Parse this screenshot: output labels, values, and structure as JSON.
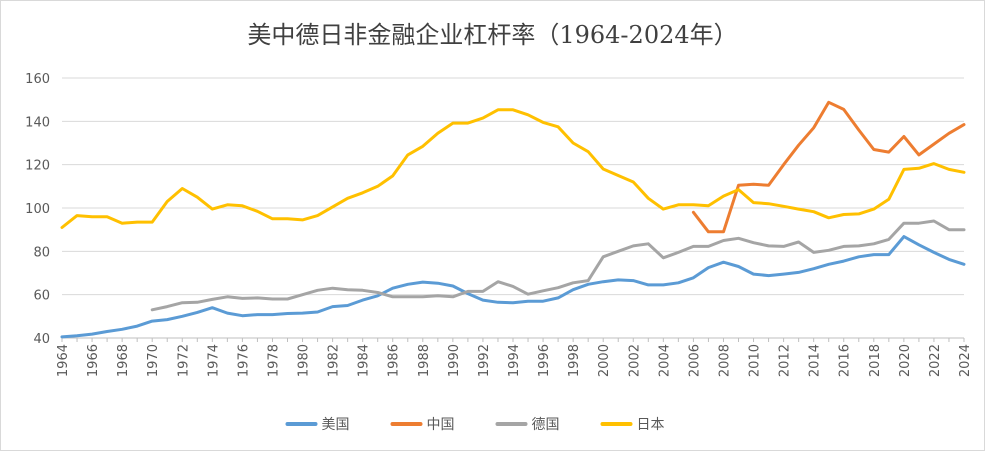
{
  "chart_data": {
    "type": "line",
    "title": "美中德日非金融企业杠杆率（1964-2024年）",
    "xlabel": "",
    "ylabel": "",
    "ylim": [
      40,
      160
    ],
    "y_ticks": [
      40,
      60,
      80,
      100,
      120,
      140,
      160
    ],
    "x_tick_labels": [
      "1964",
      "1966",
      "1968",
      "1970",
      "1972",
      "1974",
      "1976",
      "1978",
      "1980",
      "1982",
      "1984",
      "1986",
      "1988",
      "1990",
      "1992",
      "1994",
      "1996",
      "1998",
      "2000",
      "2002",
      "2004",
      "2006",
      "2008",
      "2010",
      "2012",
      "2014",
      "2016",
      "2018",
      "2020",
      "2022",
      "2024"
    ],
    "grid": true,
    "legend_position": "bottom",
    "x": [
      1964,
      1965,
      1966,
      1967,
      1968,
      1969,
      1970,
      1971,
      1972,
      1973,
      1974,
      1975,
      1976,
      1977,
      1978,
      1979,
      1980,
      1981,
      1982,
      1983,
      1984,
      1985,
      1986,
      1987,
      1988,
      1989,
      1990,
      1991,
      1992,
      1993,
      1994,
      1995,
      1996,
      1997,
      1998,
      1999,
      2000,
      2001,
      2002,
      2003,
      2004,
      2005,
      2006,
      2007,
      2008,
      2009,
      2010,
      2011,
      2012,
      2013,
      2014,
      2015,
      2016,
      2017,
      2018,
      2019,
      2020,
      2021,
      2022,
      2023,
      2024
    ],
    "series": [
      {
        "name": "美国",
        "color": "#5b9bd5",
        "values": [
          40.5,
          41,
          41.8,
          43,
          44,
          45.5,
          47.8,
          48.5,
          50,
          51.8,
          54,
          51.5,
          50.3,
          50.8,
          50.8,
          51.3,
          51.5,
          52,
          54.5,
          55,
          57.5,
          59.5,
          63,
          64.8,
          65.8,
          65.3,
          64,
          60.5,
          57.5,
          56.5,
          56.3,
          57,
          57,
          58.5,
          62.3,
          64.8,
          66,
          66.8,
          66.5,
          64.5,
          64.5,
          65.5,
          67.8,
          72.5,
          75,
          73,
          69.5,
          68.8,
          69.5,
          70.3,
          72,
          74,
          75.5,
          77.5,
          78.5,
          78.5,
          86.8,
          83,
          79.5,
          76.3,
          74
        ]
      },
      {
        "name": "中国",
        "color": "#ed7d31",
        "values": [
          null,
          null,
          null,
          null,
          null,
          null,
          null,
          null,
          null,
          null,
          null,
          null,
          null,
          null,
          null,
          null,
          null,
          null,
          null,
          null,
          null,
          null,
          null,
          null,
          null,
          null,
          null,
          null,
          null,
          null,
          null,
          null,
          null,
          null,
          null,
          null,
          null,
          null,
          null,
          null,
          null,
          null,
          98,
          89,
          89,
          110.5,
          111,
          110.5,
          120,
          129,
          137,
          148.8,
          145.5,
          136,
          127,
          125.8,
          133,
          124.5,
          129.5,
          134.5,
          138.5
        ]
      },
      {
        "name": "德国",
        "color": "#a5a5a5",
        "values": [
          null,
          null,
          null,
          null,
          null,
          null,
          53,
          54.5,
          56.3,
          56.5,
          57.8,
          59,
          58.3,
          58.5,
          58,
          58,
          60,
          62,
          63,
          62.3,
          62,
          61,
          59,
          59,
          59,
          59.5,
          59,
          61.5,
          61.5,
          66,
          63.8,
          60.2,
          61.8,
          63.2,
          65.5,
          66.5,
          77.5,
          80,
          82.5,
          83.5,
          77,
          79.5,
          82.3,
          82.3,
          85,
          86,
          84,
          82.5,
          82.3,
          84.3,
          79.5,
          80.5,
          82.3,
          82.5,
          83.5,
          85.5,
          93,
          93,
          94,
          90,
          90
        ]
      },
      {
        "name": "日本",
        "color": "#ffc000",
        "values": [
          91,
          96.5,
          96,
          96,
          93,
          93.5,
          93.5,
          103,
          109,
          105,
          99.5,
          101.5,
          101,
          98.5,
          95,
          95,
          94.5,
          96.5,
          100.5,
          104.5,
          107,
          110,
          114.8,
          124.5,
          128.5,
          134.5,
          139.2,
          139.2,
          141.5,
          145.3,
          145.3,
          143,
          139.5,
          137.5,
          130,
          126,
          118,
          115,
          112,
          104.5,
          99.5,
          101.5,
          101.5,
          101,
          105.5,
          108.5,
          102.5,
          102,
          100.8,
          99.5,
          98.3,
          95.5,
          97,
          97.3,
          99.5,
          104,
          117.8,
          118.3,
          120.5,
          117.8,
          116.5
        ]
      }
    ]
  }
}
